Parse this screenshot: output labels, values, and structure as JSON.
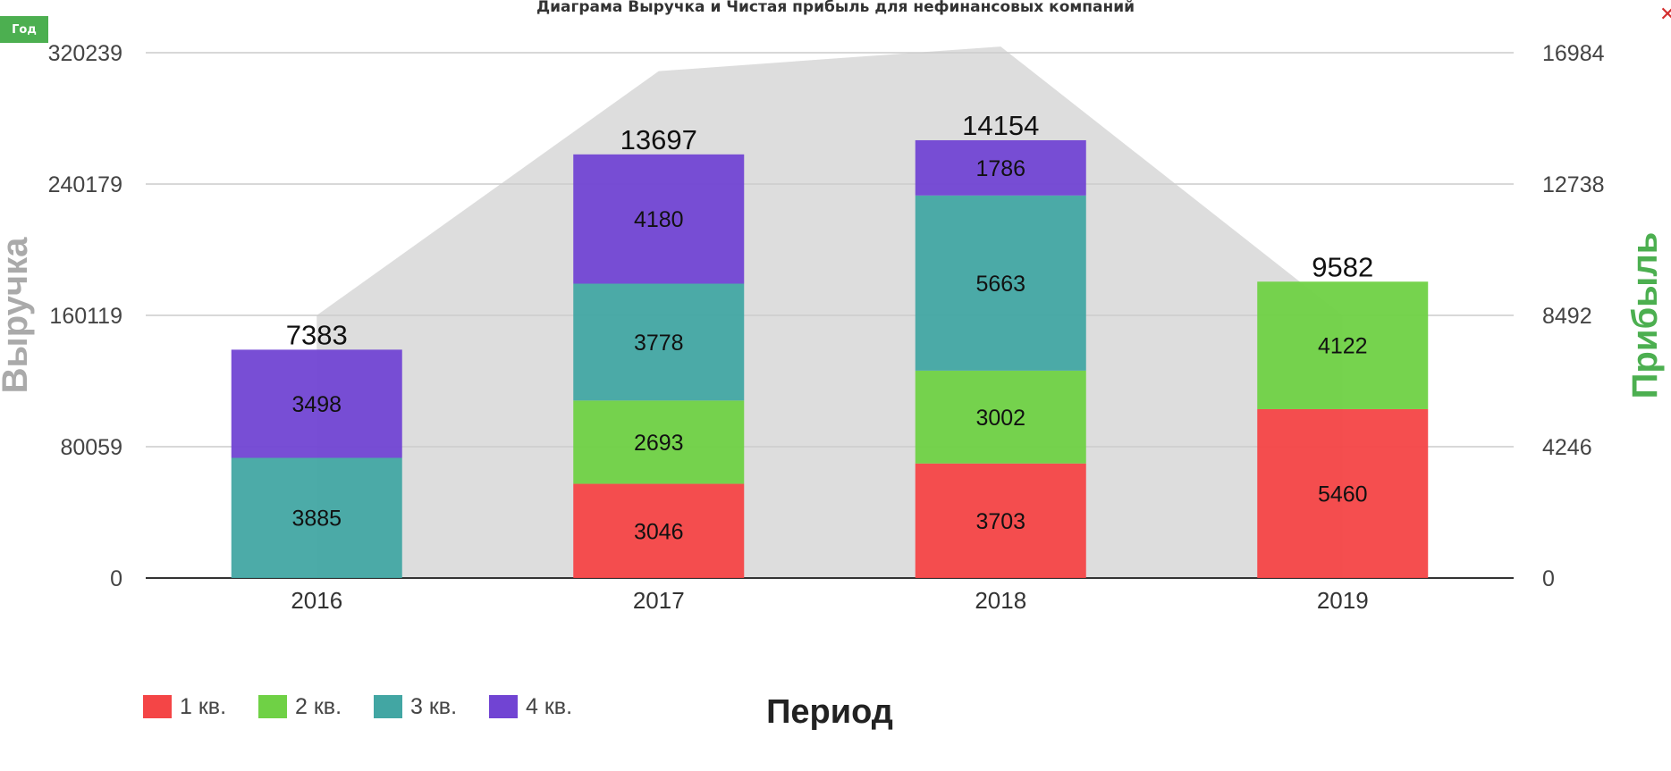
{
  "header": {
    "period_button_label": "Год",
    "close_glyph": "✕"
  },
  "chart_data": {
    "type": "bar",
    "stacked": true,
    "title": "Диаграма Выручка и Чистая прибыль для нефинансовых компаний",
    "xlabel": "Период",
    "ylabel": "Выручка",
    "y2label": "Прибыль",
    "categories": [
      "2016",
      "2017",
      "2018",
      "2019"
    ],
    "ylim": [
      0,
      320239
    ],
    "y2lim": [
      0,
      16984
    ],
    "y_ticks": [
      "0",
      "80059",
      "160119",
      "240179",
      "320239"
    ],
    "y2_ticks": [
      "0",
      "4246",
      "8492",
      "12738",
      "16984"
    ],
    "grid": true,
    "legend_position": "bottom-left",
    "series": [
      {
        "name": "1 кв.",
        "color": "#f44546",
        "values": [
          0,
          3046,
          3703,
          5460
        ]
      },
      {
        "name": "2 кв.",
        "color": "#6fd145",
        "values": [
          0,
          2693,
          3002,
          4122
        ]
      },
      {
        "name": "3 кв.",
        "color": "#42a6a3",
        "values": [
          3885,
          3778,
          5663,
          0
        ]
      },
      {
        "name": "4 кв.",
        "color": "#7144d3",
        "values": [
          3498,
          4180,
          1786,
          0
        ]
      }
    ],
    "totals": [
      7383,
      13697,
      14154,
      9582
    ],
    "revenue_area": {
      "color": "#dddddd",
      "values": [
        160119,
        309000,
        324000,
        160119
      ]
    }
  }
}
